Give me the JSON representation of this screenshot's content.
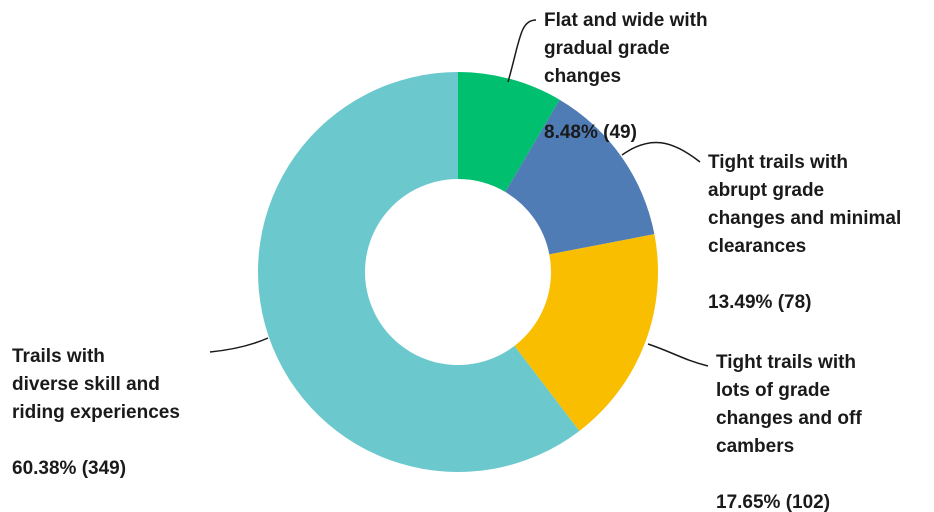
{
  "chart_data": {
    "type": "pie",
    "title": "",
    "donut": true,
    "start_angle": "12 o'clock",
    "direction": "clockwise",
    "slices": [
      {
        "label_lines": [
          "Flat and wide with",
          "gradual grade",
          "changes"
        ],
        "value_text": "8.48% (49)",
        "percent": 8.48,
        "count": 49,
        "color": "#00BF6F"
      },
      {
        "label_lines": [
          "Tight trails with",
          "abrupt grade",
          "changes and minimal",
          "clearances"
        ],
        "value_text": "13.49% (78)",
        "percent": 13.49,
        "count": 78,
        "color": "#507CB6"
      },
      {
        "label_lines": [
          "Tight trails with",
          "lots of grade",
          "changes and off",
          "cambers"
        ],
        "value_text": "17.65% (102)",
        "percent": 17.65,
        "count": 102,
        "color": "#F9BE00"
      },
      {
        "label_lines": [
          "Trails with",
          "diverse skill and",
          "riding experiences"
        ],
        "value_text": "60.38% (349)",
        "percent": 60.38,
        "count": 349,
        "color": "#6BC8CD"
      }
    ]
  }
}
